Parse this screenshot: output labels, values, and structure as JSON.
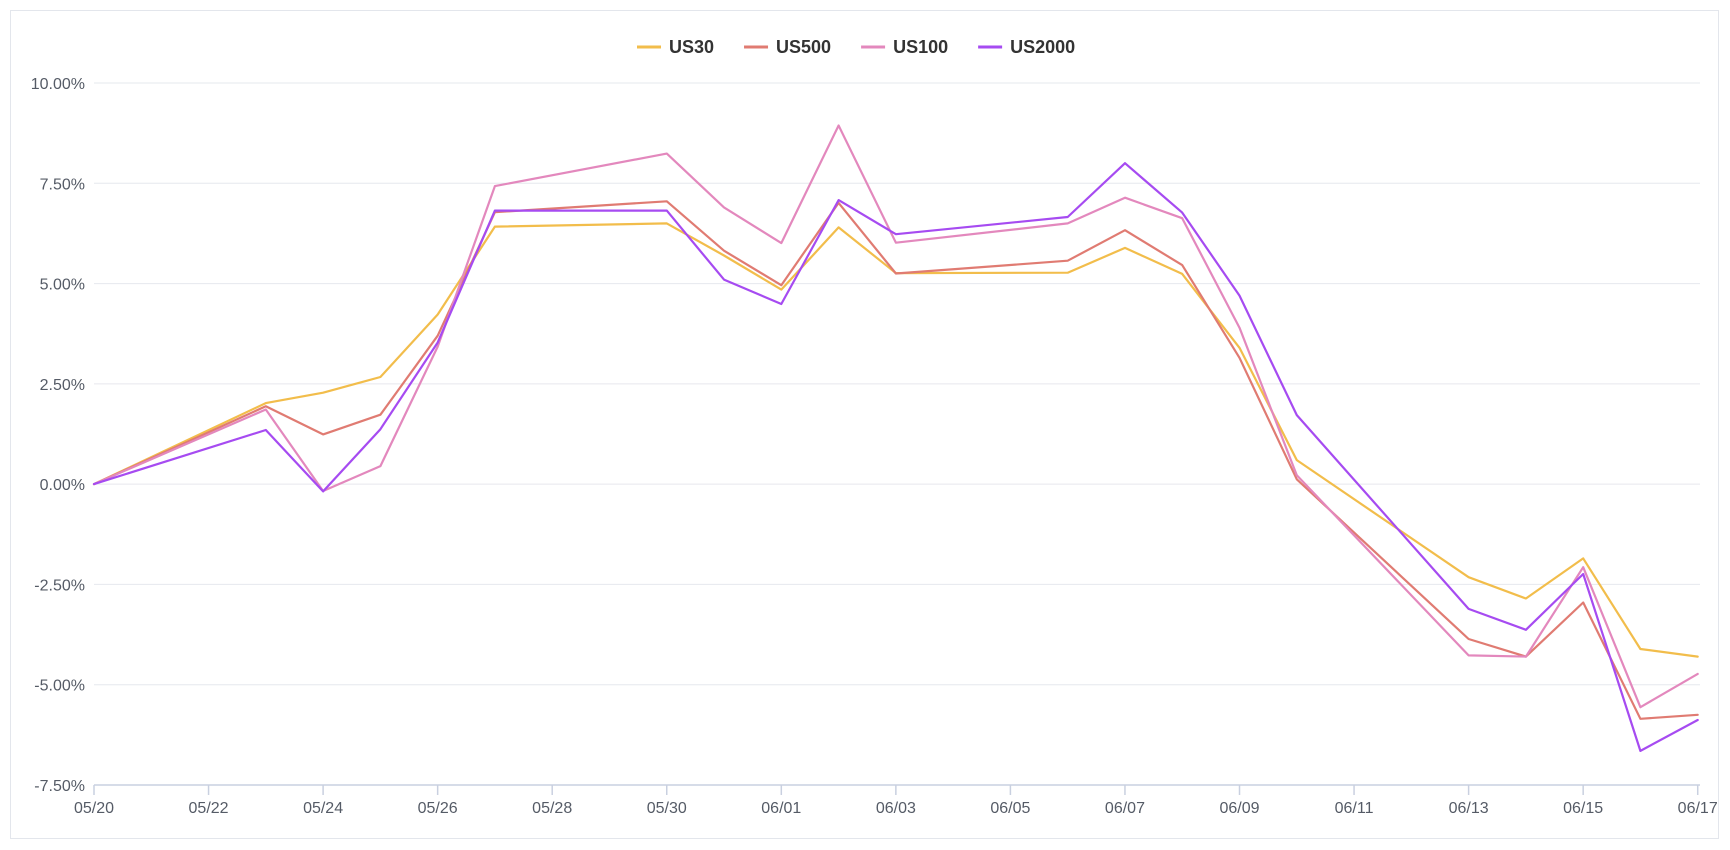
{
  "chart_data": {
    "type": "line",
    "title": "",
    "xlabel": "",
    "ylabel": "",
    "x_dates": [
      "05/20",
      "05/23",
      "05/24",
      "05/25",
      "05/26",
      "05/27",
      "05/30",
      "05/31",
      "06/01",
      "06/02",
      "06/03",
      "06/06",
      "06/07",
      "06/08",
      "06/09",
      "06/10",
      "06/13",
      "06/14",
      "06/15",
      "06/16",
      "06/17"
    ],
    "x_tick_labels": [
      "05/20",
      "05/22",
      "05/24",
      "05/26",
      "05/28",
      "05/30",
      "06/01",
      "06/03",
      "06/05",
      "06/07",
      "06/09",
      "06/11",
      "06/13",
      "06/15",
      "06/17"
    ],
    "y_tick_labels": [
      "10.00%",
      "7.50%",
      "5.00%",
      "2.50%",
      "0.00%",
      "-2.50%",
      "-5.00%",
      "-7.50%"
    ],
    "ylim": [
      -7.5,
      10
    ],
    "y_unit": "%",
    "grid": true,
    "legend_position": "top-center",
    "series": [
      {
        "name": "US30",
        "color": "#f2bd4b",
        "values": [
          0.0,
          2.02,
          2.28,
          2.67,
          4.23,
          6.42,
          6.5,
          5.7,
          4.85,
          6.4,
          5.26,
          5.27,
          5.89,
          5.24,
          3.4,
          0.6,
          -2.32,
          -2.85,
          -1.85,
          -4.11,
          -4.3
        ]
      },
      {
        "name": "US500",
        "color": "#e07b72",
        "values": [
          0.0,
          1.94,
          1.24,
          1.73,
          3.7,
          6.78,
          7.05,
          5.82,
          4.96,
          7.01,
          5.25,
          5.57,
          6.33,
          5.46,
          3.15,
          0.12,
          -3.86,
          -4.3,
          -2.95,
          -5.85,
          -5.75
        ]
      },
      {
        "name": "US100",
        "color": "#e388bd",
        "values": [
          0.0,
          1.86,
          -0.17,
          0.45,
          3.43,
          7.43,
          8.24,
          6.9,
          6.01,
          8.94,
          6.02,
          6.5,
          7.14,
          6.63,
          3.9,
          0.22,
          -4.27,
          -4.3,
          -2.07,
          -5.56,
          -4.73
        ]
      },
      {
        "name": "US2000",
        "color": "#a64bf1",
        "values": [
          0.0,
          1.35,
          -0.18,
          1.37,
          3.53,
          6.82,
          6.82,
          5.1,
          4.49,
          7.08,
          6.23,
          6.66,
          8.0,
          6.77,
          4.7,
          1.72,
          -3.11,
          -3.63,
          -2.24,
          -6.65,
          -5.88
        ]
      }
    ]
  }
}
